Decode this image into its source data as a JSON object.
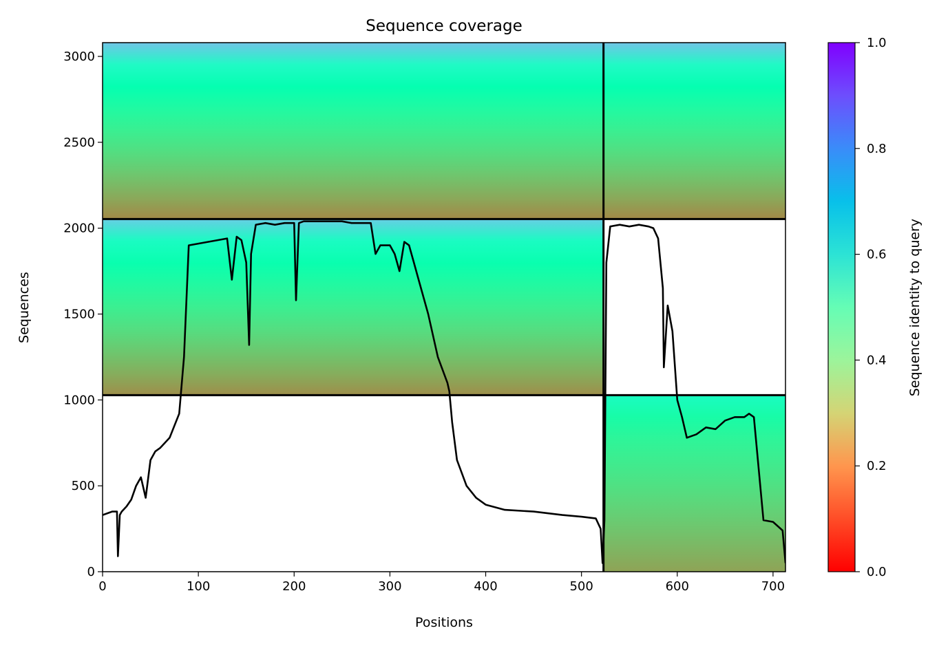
{
  "chart_data": {
    "type": "heatmap",
    "title": "Sequence coverage",
    "xlabel": "Positions",
    "ylabel": "Sequences",
    "xlim": [
      0,
      713
    ],
    "ylim": [
      0,
      3080
    ],
    "xticks": [
      0,
      100,
      200,
      300,
      400,
      500,
      600,
      700
    ],
    "yticks": [
      0,
      500,
      1000,
      1500,
      2000,
      2500,
      3000
    ],
    "colorbar": {
      "label": "Sequence identity to query",
      "range": [
        0,
        1
      ],
      "ticks": [
        0.0,
        0.2,
        0.4,
        0.6,
        0.8,
        1.0
      ],
      "colormap": "rainbow_r"
    },
    "chain_boundary_x": 523,
    "block_boundaries_y": [
      1028,
      2053
    ],
    "grid": false,
    "legend": "none",
    "coverage_blocks": [
      {
        "x_range": [
          0,
          523
        ],
        "y_range": [
          2053,
          3080
        ],
        "identity_top": 0.72,
        "identity_bottom": 0.18
      },
      {
        "x_range": [
          523,
          713
        ],
        "y_range": [
          2053,
          3080
        ],
        "identity_top": 0.72,
        "identity_bottom": 0.18
      },
      {
        "x_range": [
          0,
          523
        ],
        "y_range": [
          1028,
          2053
        ],
        "identity_top": 0.7,
        "identity_bottom": 0.19
      },
      {
        "x_range": [
          523,
          713
        ],
        "y_range": [
          0,
          1028
        ],
        "identity_top": 0.55,
        "identity_bottom": 0.22
      }
    ],
    "coverage_line": {
      "x": [
        0,
        10,
        15,
        16,
        18,
        20,
        25,
        30,
        35,
        40,
        45,
        50,
        55,
        60,
        70,
        80,
        85,
        90,
        100,
        110,
        120,
        130,
        135,
        140,
        145,
        150,
        153,
        155,
        160,
        170,
        180,
        190,
        200,
        202,
        205,
        210,
        220,
        230,
        240,
        250,
        260,
        270,
        280,
        285,
        290,
        300,
        305,
        310,
        315,
        320,
        325,
        330,
        340,
        350,
        360,
        362,
        365,
        370,
        380,
        390,
        400,
        420,
        450,
        480,
        500,
        515,
        520,
        522,
        524,
        526,
        530,
        540,
        550,
        560,
        570,
        575,
        580,
        585,
        586,
        590,
        595,
        600,
        605,
        610,
        620,
        630,
        640,
        650,
        660,
        670,
        675,
        680,
        690,
        700,
        710,
        713
      ],
      "y": [
        330,
        350,
        350,
        90,
        330,
        350,
        380,
        420,
        500,
        550,
        430,
        650,
        700,
        720,
        780,
        920,
        1250,
        1900,
        1910,
        1920,
        1930,
        1940,
        1700,
        1950,
        1930,
        1800,
        1320,
        1850,
        2020,
        2030,
        2020,
        2030,
        2030,
        1580,
        2030,
        2040,
        2040,
        2040,
        2040,
        2040,
        2030,
        2030,
        2030,
        1850,
        1900,
        1900,
        1850,
        1750,
        1920,
        1900,
        1800,
        1700,
        1500,
        1250,
        1100,
        1050,
        870,
        650,
        500,
        430,
        390,
        360,
        350,
        330,
        320,
        310,
        250,
        50,
        300,
        1800,
        2010,
        2020,
        2010,
        2020,
        2010,
        2000,
        1940,
        1650,
        1190,
        1550,
        1400,
        1000,
        900,
        780,
        800,
        840,
        830,
        880,
        900,
        900,
        920,
        900,
        300,
        290,
        240,
        50
      ]
    }
  }
}
